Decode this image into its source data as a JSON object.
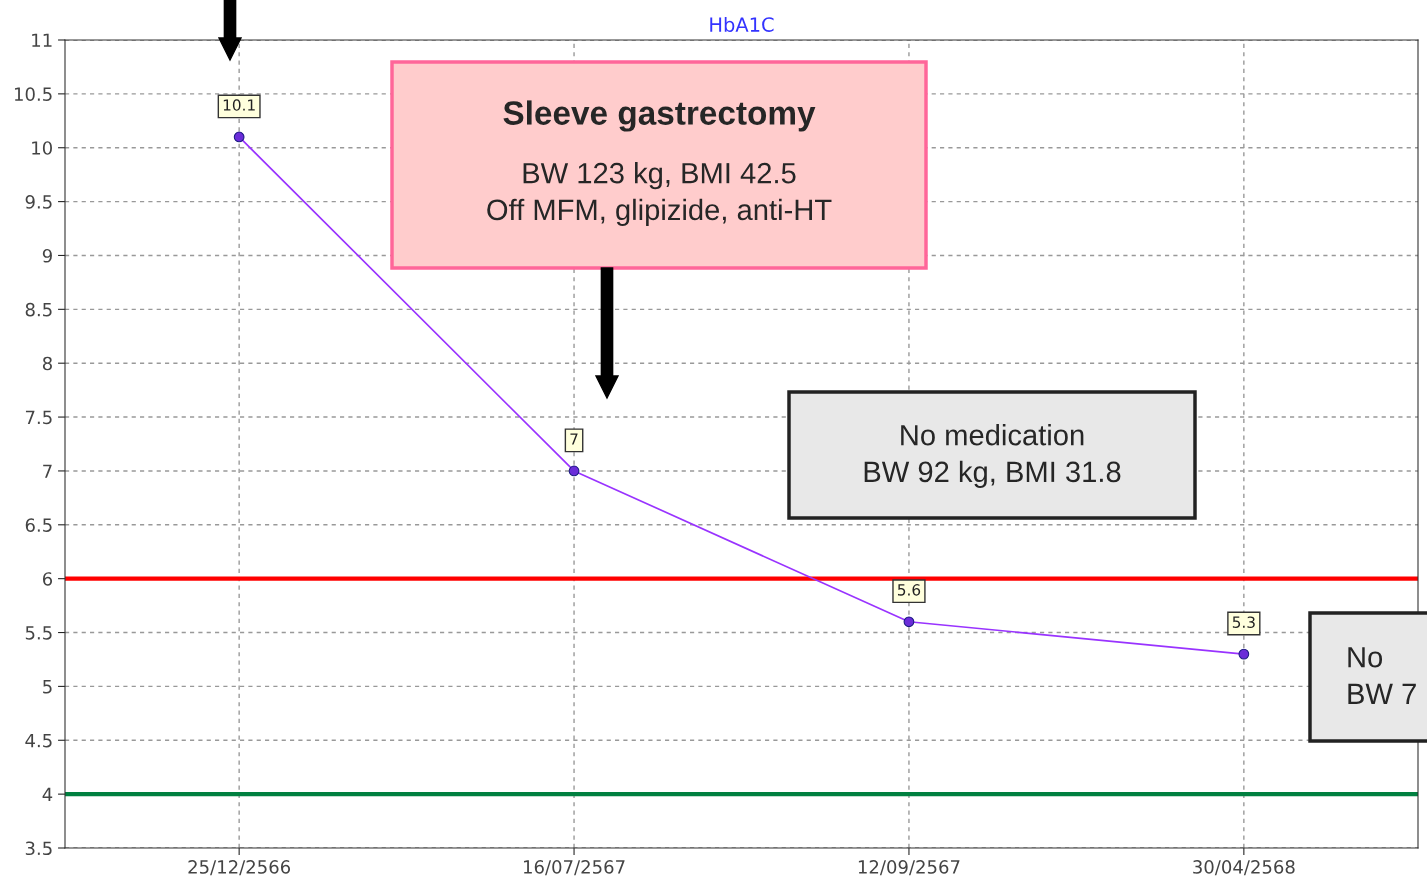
{
  "chart_data": {
    "type": "line",
    "title": "HbA1C",
    "categories": [
      "25/12/2566",
      "16/07/2567",
      "12/09/2567",
      "30/04/2568"
    ],
    "series": [
      {
        "color": "#9933ff",
        "values": [
          10.1,
          7,
          5.6,
          5.3
        ]
      }
    ],
    "ylim": [
      3.5,
      11
    ],
    "yticks": [
      3.5,
      4,
      4.5,
      5,
      5.5,
      6,
      6.5,
      7,
      7.5,
      8,
      8.5,
      9,
      9.5,
      10,
      10.5,
      11
    ],
    "grid": true,
    "marker": "circle",
    "line_style": "solid",
    "data_labels": true,
    "ref_lines": [
      {
        "axis": "y",
        "value": 6,
        "color": "#ff0000"
      },
      {
        "axis": "y",
        "value": 4,
        "color": "#008040"
      }
    ],
    "annotations": [
      "Sleeve gastrectomy",
      "BW 123 kg, BMI 42.5\nOff MFM, glipizide, anti-HT",
      "No medication\nBW 92 kg, BMI 31.8",
      "No\nBW 7"
    ]
  }
}
